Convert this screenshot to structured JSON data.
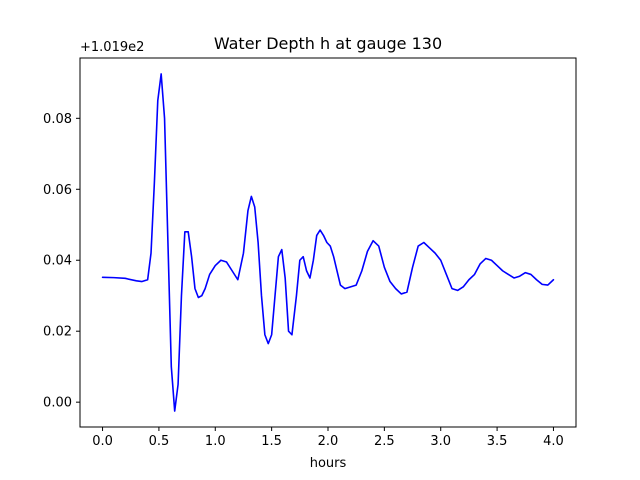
{
  "chart_data": {
    "type": "line",
    "title": "Water Depth h at gauge 130",
    "xlabel": "hours",
    "ylabel": "",
    "y_offset_label": "+1.019e2",
    "xlim": [
      -0.2,
      4.2
    ],
    "ylim": [
      -0.007,
      0.097
    ],
    "grid": false,
    "x_ticks": [
      0.0,
      0.5,
      1.0,
      1.5,
      2.0,
      2.5,
      3.0,
      3.5,
      4.0
    ],
    "x_tick_labels": [
      "0.0",
      "0.5",
      "1.0",
      "1.5",
      "2.0",
      "2.5",
      "3.0",
      "3.5",
      "4.0"
    ],
    "y_ticks": [
      0.0,
      0.02,
      0.04,
      0.06,
      0.08
    ],
    "y_tick_labels": [
      "0.00",
      "0.02",
      "0.04",
      "0.06",
      "0.08"
    ],
    "series": [
      {
        "color": "#0000ff",
        "x": [
          0.0,
          0.1,
          0.2,
          0.3,
          0.35,
          0.4,
          0.43,
          0.46,
          0.49,
          0.52,
          0.55,
          0.58,
          0.61,
          0.64,
          0.67,
          0.7,
          0.73,
          0.76,
          0.79,
          0.82,
          0.85,
          0.88,
          0.91,
          0.95,
          1.0,
          1.05,
          1.1,
          1.15,
          1.2,
          1.25,
          1.29,
          1.32,
          1.35,
          1.38,
          1.41,
          1.44,
          1.47,
          1.5,
          1.53,
          1.56,
          1.59,
          1.62,
          1.65,
          1.68,
          1.72,
          1.75,
          1.78,
          1.81,
          1.84,
          1.87,
          1.9,
          1.93,
          1.96,
          1.99,
          2.02,
          2.05,
          2.08,
          2.11,
          2.15,
          2.2,
          2.25,
          2.3,
          2.35,
          2.4,
          2.45,
          2.5,
          2.55,
          2.6,
          2.65,
          2.7,
          2.75,
          2.8,
          2.85,
          2.9,
          2.95,
          3.0,
          3.05,
          3.1,
          3.15,
          3.2,
          3.25,
          3.3,
          3.35,
          3.4,
          3.45,
          3.5,
          3.55,
          3.6,
          3.65,
          3.7,
          3.75,
          3.8,
          3.85,
          3.9,
          3.95,
          4.0
        ],
        "y": [
          0.0352,
          0.0351,
          0.0349,
          0.0342,
          0.034,
          0.0345,
          0.042,
          0.062,
          0.085,
          0.0925,
          0.08,
          0.045,
          0.01,
          -0.0025,
          0.005,
          0.03,
          0.048,
          0.048,
          0.041,
          0.032,
          0.0295,
          0.03,
          0.032,
          0.036,
          0.0385,
          0.04,
          0.0395,
          0.037,
          0.0345,
          0.042,
          0.054,
          0.058,
          0.055,
          0.045,
          0.03,
          0.019,
          0.0165,
          0.019,
          0.03,
          0.041,
          0.043,
          0.035,
          0.02,
          0.019,
          0.03,
          0.04,
          0.041,
          0.037,
          0.035,
          0.04,
          0.047,
          0.0485,
          0.047,
          0.045,
          0.044,
          0.041,
          0.037,
          0.033,
          0.032,
          0.0325,
          0.033,
          0.037,
          0.0425,
          0.0455,
          0.044,
          0.038,
          0.034,
          0.032,
          0.0305,
          0.031,
          0.038,
          0.044,
          0.045,
          0.0435,
          0.042,
          0.04,
          0.036,
          0.032,
          0.0315,
          0.0325,
          0.0345,
          0.036,
          0.039,
          0.0405,
          0.04,
          0.0385,
          0.037,
          0.036,
          0.035,
          0.0355,
          0.0365,
          0.036,
          0.0345,
          0.0332,
          0.033,
          0.0345
        ]
      }
    ]
  }
}
